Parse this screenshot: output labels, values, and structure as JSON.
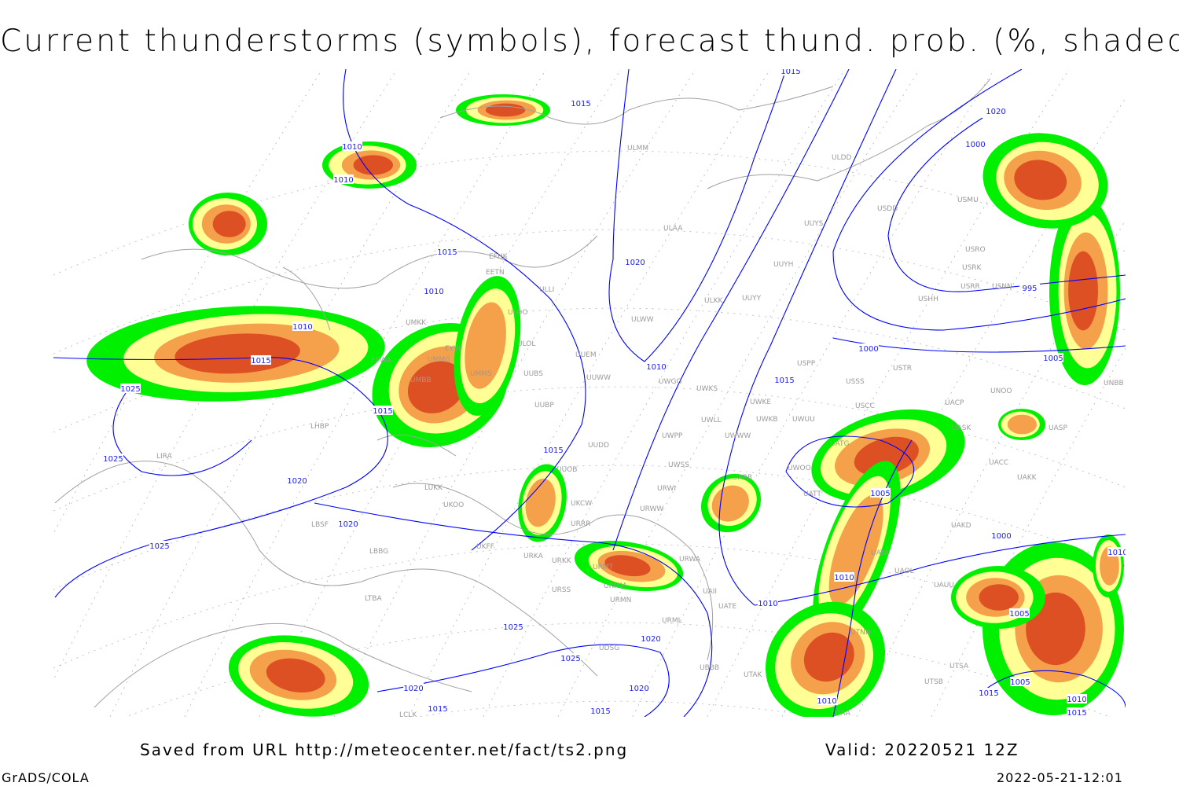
{
  "title": "Current thunderstorms (symbols), forecast thund. prob. (%, shaded)",
  "footer": {
    "source": "Saved from URL http://meteocenter.net/fact/ts2.png",
    "valid": "Valid: 20220521 12Z",
    "software": "GrADS/COLA",
    "generated": "2022-05-21-12:01"
  },
  "colors": {
    "prob_low": "#00f000",
    "prob_mid": "#ffff96",
    "prob_high": "#f5a04b",
    "prob_max": "#dc5023",
    "isobar": "#0000ff",
    "coastline": "#a0a0a0",
    "grid": "#b4b4b4"
  },
  "stations": [
    "ULMM",
    "ULDD",
    "USDD",
    "USMU",
    "ULAA",
    "UUYS",
    "EFHK",
    "EETN",
    "USRO",
    "USRK",
    "UUYH",
    "USRR",
    "USNN",
    "USHH",
    "ULLI",
    "ULKK",
    "UUYY",
    "ULOO",
    "ULWW",
    "UMKK",
    "ULOL",
    "EYVI",
    "UUEM",
    "UMMG",
    "EPWA",
    "UMMS",
    "UUBS",
    "USPP",
    "USTR",
    "UUWW",
    "UWGG",
    "UMBB",
    "USSS",
    "UWKS",
    "UNOO",
    "UNBB",
    "UUBP",
    "UWKE",
    "USCC",
    "UACP",
    "UWKB",
    "UWUU",
    "UWLL",
    "UASK",
    "UASP",
    "LHBP",
    "UUDD",
    "UWPP",
    "UWWW",
    "UATG",
    "UUOB",
    "UWSS",
    "LIRA",
    "UACC",
    "UAKK",
    "UARR",
    "UWOO",
    "LUKK",
    "UKOO",
    "UATT",
    "URWI",
    "UKCW",
    "URWW",
    "LBSF",
    "URRR",
    "UAKD",
    "UKFF",
    "LBBG",
    "URKA",
    "URKK",
    "URWA",
    "UATA",
    "URMT",
    "UAOL",
    "URMM",
    "URSS",
    "UAII",
    "UAUU",
    "LTBA",
    "URMN",
    "UATE",
    "URML",
    "UTNN",
    "UDSG",
    "UBBB",
    "UTAK",
    "UTSA",
    "UTSB",
    "UTAA",
    "LCLK"
  ],
  "isobar_labels": [
    "1015",
    "1010",
    "1010",
    "1015",
    "1020",
    "1010",
    "1010",
    "1015",
    "1025",
    "1015",
    "1025",
    "1020",
    "1015",
    "1020",
    "1025",
    "1025",
    "1025",
    "1020",
    "1020",
    "1020",
    "1015",
    "1015",
    "1020",
    "1000",
    "995",
    "1000",
    "1005",
    "1010",
    "1015",
    "1005",
    "1000",
    "1010",
    "1010",
    "1005",
    "1010",
    "1005",
    "1015",
    "1010",
    "1015",
    "1015",
    "1010"
  ]
}
